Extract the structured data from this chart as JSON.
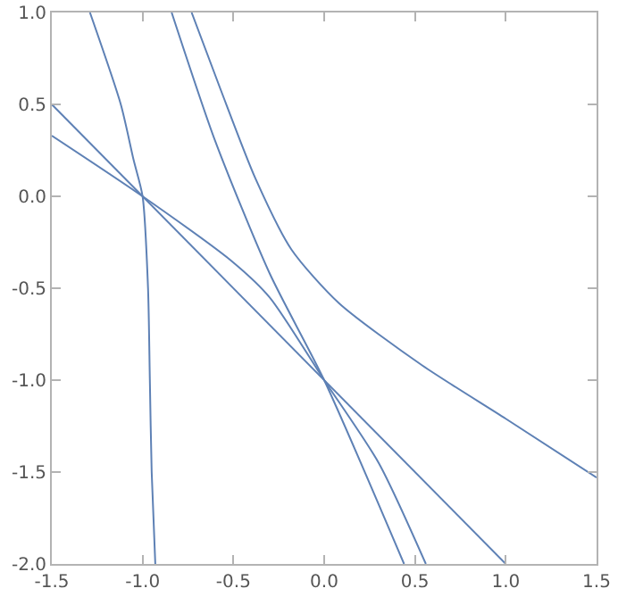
{
  "chart_data": {
    "type": "line",
    "xlim": [
      -1.5,
      1.5
    ],
    "ylim": [
      -2,
      1
    ],
    "xticks": [
      {
        "value": -1.5,
        "label": "-1.5"
      },
      {
        "value": -1,
        "label": "-1.0"
      },
      {
        "value": -0.5,
        "label": "-0.5"
      },
      {
        "value": 0,
        "label": "0.0"
      },
      {
        "value": 0.5,
        "label": "0.5"
      },
      {
        "value": 1,
        "label": "1.0"
      },
      {
        "value": 1.5,
        "label": "1.5"
      }
    ],
    "yticks": [
      {
        "value": -2,
        "label": "-2.0"
      },
      {
        "value": -1.5,
        "label": "-1.5"
      },
      {
        "value": -1,
        "label": "-1.0"
      },
      {
        "value": -0.5,
        "label": "-0.5"
      },
      {
        "value": 0,
        "label": "0.0"
      },
      {
        "value": 0.5,
        "label": "0.5"
      },
      {
        "value": 1,
        "label": "1.0"
      }
    ],
    "grid": false,
    "marker": "none",
    "line_style": "solid",
    "series": [
      {
        "color": "#5e81b5",
        "x": [
          -1.5,
          1
        ],
        "values": [
          0.5,
          -2
        ]
      },
      {
        "color": "#5e81b5",
        "x": [
          -1.5,
          -1,
          -0.5,
          -0.3,
          0,
          0.3,
          0.56
        ],
        "values": [
          0.33,
          0,
          -0.36,
          -0.55,
          -1,
          -1.45,
          -2
        ]
      },
      {
        "color": "#5e81b5",
        "x": [
          -0.84,
          -0.6,
          -0.3,
          0,
          0.44
        ],
        "values": [
          1,
          0.3,
          -0.42,
          -1,
          -2
        ]
      },
      {
        "color": "#5e81b5",
        "x": [
          -0.73,
          -0.57,
          -0.38,
          -0.18,
          0.08,
          0.54,
          1,
          1.5
        ],
        "values": [
          1,
          0.58,
          0.1,
          -0.29,
          -0.58,
          -0.92,
          -1.21,
          -1.53
        ]
      },
      {
        "color": "#5e81b5",
        "x": [
          -1.29,
          -1.12,
          -1.05,
          -1,
          -0.97,
          -0.96,
          -0.95,
          -0.93
        ],
        "values": [
          1,
          0.5,
          0.2,
          0,
          -0.5,
          -1,
          -1.5,
          -2
        ]
      }
    ]
  }
}
